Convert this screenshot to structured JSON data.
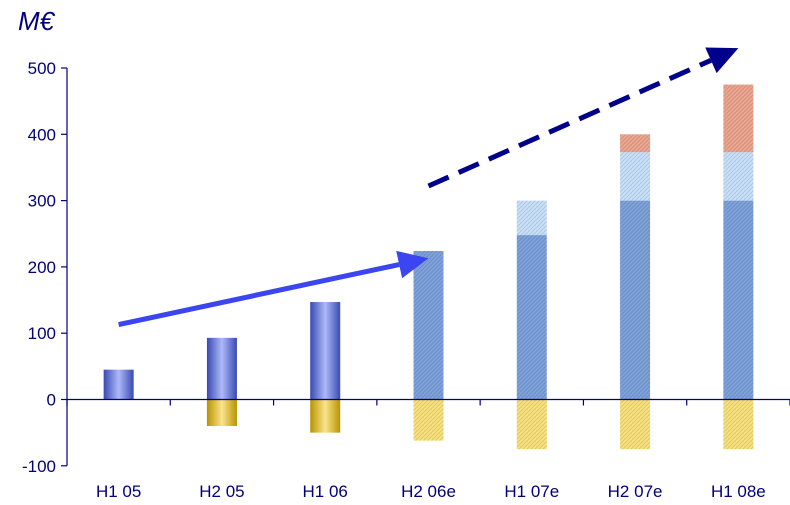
{
  "chart_data": {
    "type": "bar",
    "unit_label": "M€",
    "categories": [
      "H1 05",
      "H2 05",
      "H1 06",
      "H2 06e",
      "H1 07e",
      "H2 07e",
      "H1 08e"
    ],
    "ylim": [
      -100,
      500
    ],
    "yticks": [
      -100,
      0,
      100,
      200,
      300,
      400,
      500
    ],
    "grid": false,
    "stacking": "stacked",
    "series": [
      {
        "values": [
          45,
          93,
          147,
          0,
          0,
          0,
          0
        ],
        "color": "#4a63f0",
        "style": "gradient"
      },
      {
        "values": [
          0,
          -40,
          -50,
          0,
          0,
          0,
          0
        ],
        "color": "#f5c400",
        "style": "gradient"
      },
      {
        "values": [
          0,
          0,
          0,
          224,
          248,
          300,
          300
        ],
        "color": "#7ea2dd",
        "style": "hatched"
      },
      {
        "values": [
          0,
          0,
          0,
          0,
          52,
          73,
          73
        ],
        "color": "#c9e1fb",
        "style": "hatched"
      },
      {
        "values": [
          0,
          0,
          0,
          0,
          0,
          27,
          102
        ],
        "color": "#eda690",
        "style": "hatched"
      },
      {
        "values": [
          0,
          0,
          0,
          -62,
          -75,
          -75,
          -75
        ],
        "color": "#fae27d",
        "style": "hatched"
      }
    ],
    "annotations": [
      {
        "type": "arrow",
        "style": "solid",
        "color": "#3b46f0",
        "from": {
          "x": "H1 05",
          "y": 113
        },
        "to": {
          "x": "H2 06e",
          "y": 213
        }
      },
      {
        "type": "arrow",
        "style": "dashed",
        "color": "#00008a",
        "from": {
          "x": "H2 06e",
          "y": 322
        },
        "to": {
          "x": "H1 08e",
          "y": 530
        }
      }
    ]
  },
  "colors": {
    "axis": "#00007a",
    "text": "#00007a"
  }
}
